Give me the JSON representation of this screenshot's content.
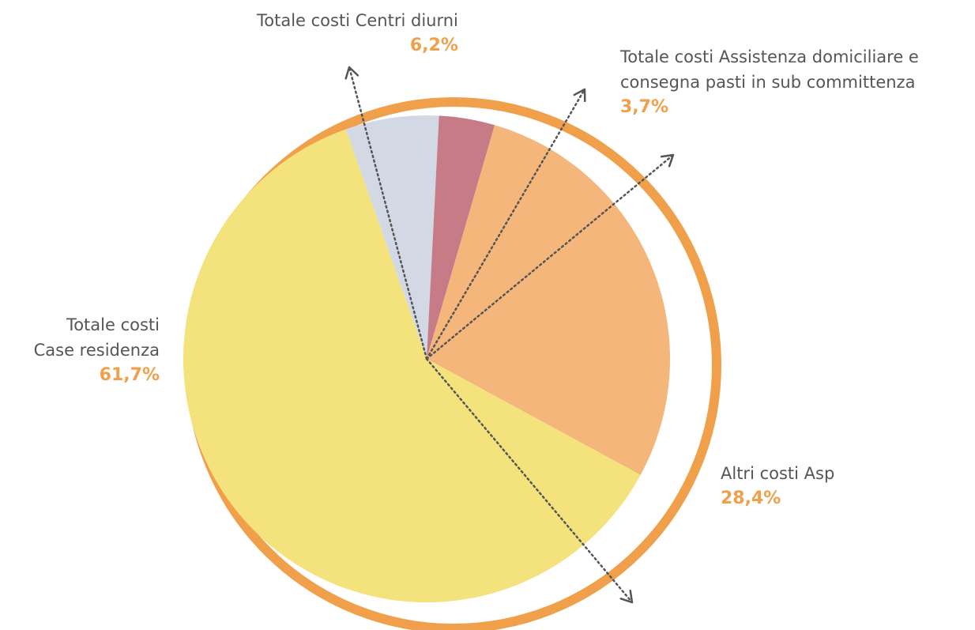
{
  "chart_data": {
    "type": "pie",
    "title": "",
    "slices": [
      {
        "label_lines": [
          "Totale costi Centri diurni"
        ],
        "value": 6.2,
        "value_label": "6,2%",
        "color": "#d2d9e5"
      },
      {
        "label_lines": [
          "Totale costi Assistenza domiciliare e",
          "consegna pasti in sub committenza"
        ],
        "value": 3.7,
        "value_label": "3,7%",
        "color": "#c77b86"
      },
      {
        "label_lines": [
          "Altri costi Asp"
        ],
        "value": 28.4,
        "value_label": "28,4%",
        "color": "#f4b67a"
      },
      {
        "label_lines": [
          "Totale costi",
          "Case residenza"
        ],
        "value": 61.7,
        "value_label": "61,7%",
        "color": "#f4e27d"
      }
    ],
    "ring_color": "#f0a04b",
    "pointer_color": "#555555",
    "legend": "none"
  }
}
